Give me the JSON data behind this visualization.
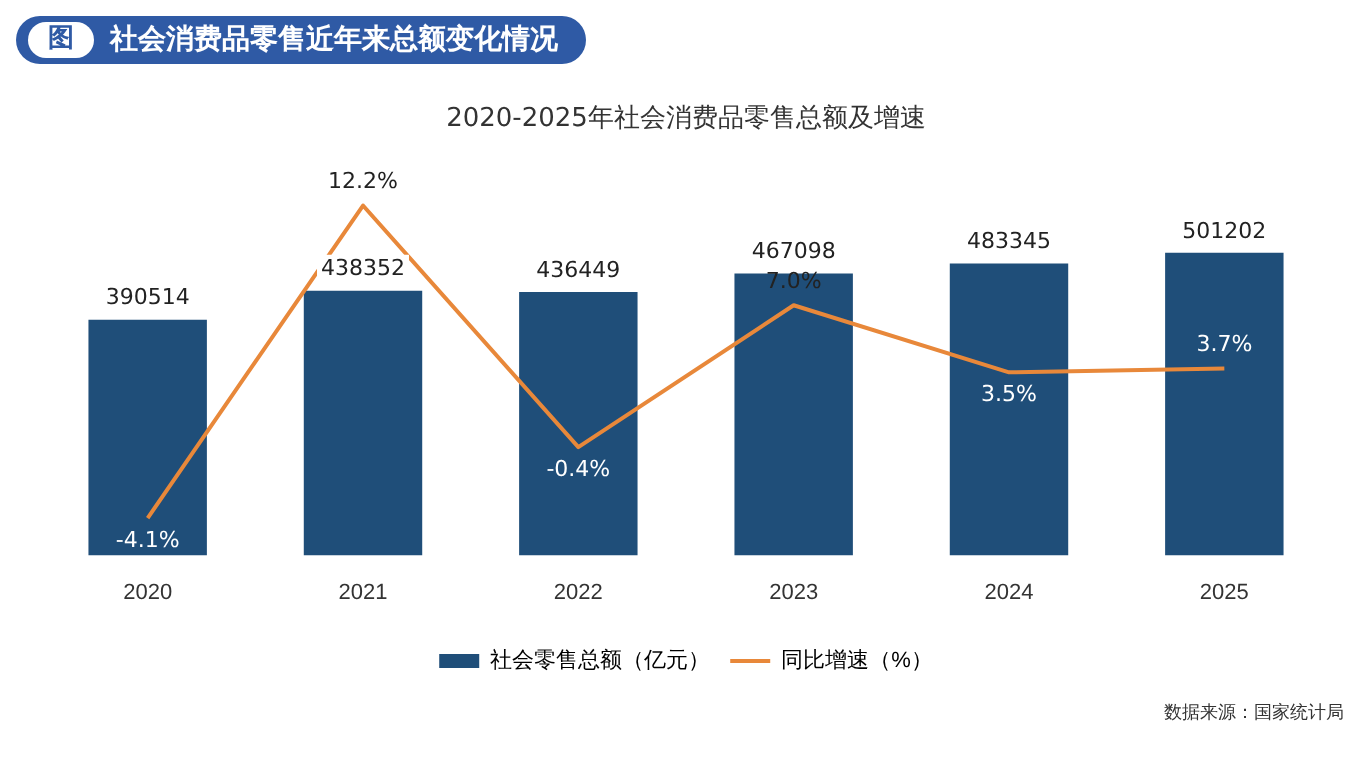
{
  "chart_data": {
    "type": "bar",
    "title": "社会消费品零售近年来总额变化情况",
    "subtitle": "2020-2025年社会消费品零售总额及增速",
    "annotations": [
      "图",
      "数据来源：国家统计局"
    ],
    "categories": [
      "2020",
      "2021",
      "2022",
      "2023",
      "2024",
      "2025"
    ],
    "series": [
      {
        "name": "社会零售总额（亿元）",
        "color": "#1f4e79",
        "values": [
          390514,
          438352,
          436449,
          467098,
          483345,
          501202
        ]
      },
      {
        "name": "同比增速（%）",
        "type": "line",
        "axis": "y2",
        "color": "#e8883a",
        "values": [
          -4.1,
          12.2,
          -0.4,
          7.0,
          3.5,
          3.7
        ],
        "value_labels": [
          "-4.1%",
          "12.2%",
          "-0.4%",
          "7.0%",
          "3.5%",
          "3.7%"
        ]
      }
    ],
    "data_labels": true,
    "legend": "bottom",
    "grid": false,
    "marker": "none",
    "line_style": "solid"
  }
}
